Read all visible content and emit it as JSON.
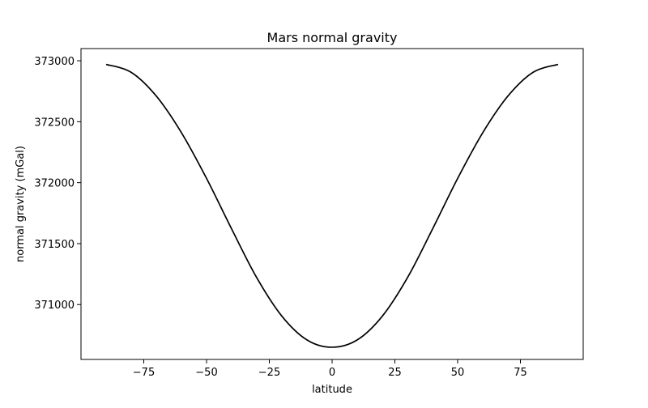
{
  "chart_data": {
    "type": "line",
    "title": "Mars normal gravity",
    "xlabel": "latitude",
    "ylabel": "normal gravity (mGal)",
    "xlim": [
      -100,
      100
    ],
    "ylim": [
      370550,
      373100
    ],
    "xticks": [
      -75,
      -50,
      -25,
      0,
      25,
      50,
      75
    ],
    "xtick_labels": [
      "−75",
      "−50",
      "−25",
      "0",
      "25",
      "50",
      "75"
    ],
    "yticks": [
      371000,
      371500,
      372000,
      372500,
      373000
    ],
    "ytick_labels": [
      "371000",
      "371500",
      "372000",
      "372500",
      "373000"
    ],
    "grid": false,
    "line_color": "#000000",
    "series": [
      {
        "x": [
          -90,
          -80,
          -70,
          -60,
          -50,
          -40,
          -30,
          -20,
          -10,
          0,
          10,
          20,
          30,
          40,
          50,
          60,
          70,
          80,
          90
        ],
        "values": [
          372970,
          372905,
          372710,
          372410,
          372035,
          371620,
          371220,
          370905,
          370710,
          370650,
          370710,
          370905,
          371220,
          371620,
          372035,
          372410,
          372710,
          372905,
          372970
        ]
      }
    ]
  }
}
